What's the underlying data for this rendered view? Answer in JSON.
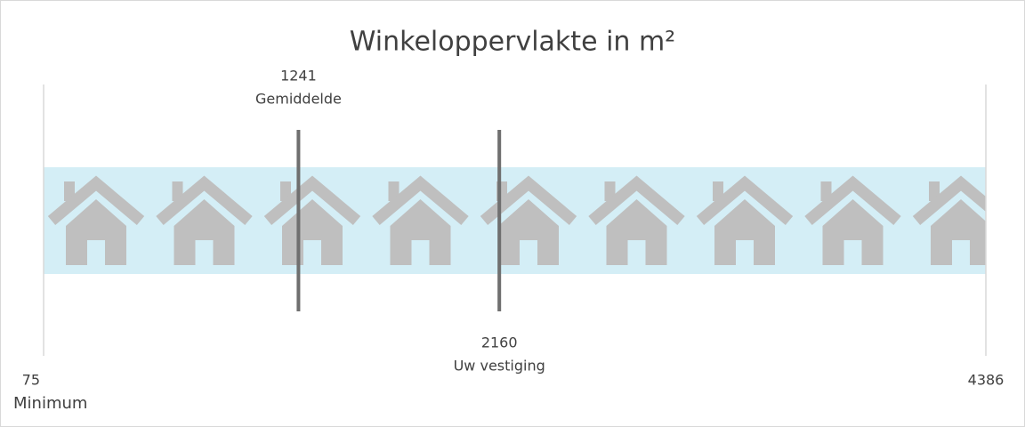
{
  "chart_data": {
    "type": "range",
    "title": "Winkeloppervlakte in m²",
    "xlim": [
      75,
      4386
    ],
    "xticks": [
      75,
      4386
    ],
    "min_label": "Minimum",
    "band_color": "#d4eef6",
    "marker_color": "#6f6f6f",
    "markers": [
      {
        "name": "Gemiddelde",
        "value": 1241
      },
      {
        "name": "Uw vestiging",
        "value": 2160
      }
    ]
  }
}
